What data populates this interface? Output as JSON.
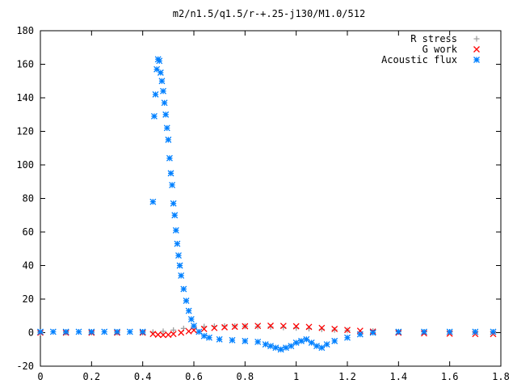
{
  "chart_data": {
    "type": "scatter",
    "title": "m2/n1.5/q1.5/r-+.25-j130/M1.0/512",
    "xlabel": "",
    "ylabel": "",
    "xlim": [
      0,
      1.8
    ],
    "ylim": [
      -20,
      180
    ],
    "xticks": [
      0,
      0.2,
      0.4,
      0.6,
      0.8,
      1,
      1.2,
      1.4,
      1.6,
      1.8
    ],
    "xtick_labels": [
      "0",
      "0.2",
      "0.4",
      "0.6",
      "0.8",
      "1",
      "1.2",
      "1.4",
      "1.6",
      "1.8"
    ],
    "yticks": [
      -20,
      0,
      20,
      40,
      60,
      80,
      100,
      120,
      140,
      160,
      180
    ],
    "ytick_labels": [
      "-20",
      "0",
      "20",
      "40",
      "60",
      "80",
      "100",
      "120",
      "140",
      "160",
      "180"
    ],
    "grid": false,
    "legend_position": "top-right",
    "series": [
      {
        "name": "R stress",
        "marker": "plus",
        "color": "#a0a0a0",
        "x": [
          0.0,
          0.1,
          0.2,
          0.3,
          0.4,
          0.44,
          0.48,
          0.52,
          0.56,
          0.6,
          0.64,
          0.68,
          0.72,
          0.76,
          0.8,
          0.85,
          0.9,
          0.95,
          1.0,
          1.05,
          1.1,
          1.15,
          1.2,
          1.3,
          1.4,
          1.5,
          1.6,
          1.7,
          1.77
        ],
        "y": [
          0,
          0,
          0,
          0,
          0,
          0.3,
          0.8,
          1.5,
          2.5,
          3.2,
          3.6,
          3.8,
          3.9,
          3.9,
          3.8,
          3.6,
          3.4,
          3.1,
          2.8,
          2.4,
          2.0,
          1.6,
          1.3,
          0.9,
          0.6,
          0.4,
          0.3,
          0.2,
          0.2
        ]
      },
      {
        "name": "G work",
        "marker": "cross",
        "color": "#ff0000",
        "x": [
          0.0,
          0.1,
          0.2,
          0.3,
          0.4,
          0.44,
          0.46,
          0.48,
          0.5,
          0.52,
          0.55,
          0.58,
          0.6,
          0.64,
          0.68,
          0.72,
          0.76,
          0.8,
          0.85,
          0.9,
          0.95,
          1.0,
          1.05,
          1.1,
          1.15,
          1.2,
          1.25,
          1.3,
          1.4,
          1.5,
          1.6,
          1.7,
          1.77
        ],
        "y": [
          0,
          0,
          0,
          0,
          0,
          -0.8,
          -1.2,
          -1.4,
          -1.3,
          -0.8,
          0.0,
          0.8,
          1.4,
          2.2,
          2.8,
          3.2,
          3.5,
          3.8,
          4.0,
          4.1,
          4.0,
          3.8,
          3.4,
          2.8,
          2.2,
          1.6,
          1.1,
          0.6,
          0.0,
          -0.4,
          -0.6,
          -0.8,
          -0.8
        ]
      },
      {
        "name": "Acoustic flux",
        "marker": "star",
        "color": "#0080ff",
        "x": [
          0.0,
          0.05,
          0.1,
          0.15,
          0.2,
          0.25,
          0.3,
          0.35,
          0.4,
          0.44,
          0.445,
          0.45,
          0.455,
          0.46,
          0.465,
          0.47,
          0.475,
          0.48,
          0.485,
          0.49,
          0.495,
          0.5,
          0.505,
          0.51,
          0.515,
          0.52,
          0.525,
          0.53,
          0.535,
          0.54,
          0.545,
          0.55,
          0.56,
          0.57,
          0.58,
          0.59,
          0.6,
          0.62,
          0.64,
          0.66,
          0.7,
          0.75,
          0.8,
          0.85,
          0.88,
          0.9,
          0.92,
          0.94,
          0.96,
          0.98,
          1.0,
          1.02,
          1.04,
          1.06,
          1.08,
          1.1,
          1.12,
          1.15,
          1.2,
          1.25,
          1.3,
          1.4,
          1.5,
          1.6,
          1.7,
          1.77
        ],
        "y": [
          0.5,
          0.5,
          0.5,
          0.5,
          0.5,
          0.5,
          0.5,
          0.5,
          0.5,
          78,
          129,
          142,
          157,
          163,
          162,
          155,
          150,
          144,
          137,
          130,
          122,
          115,
          104,
          95,
          88,
          77,
          70,
          61,
          53,
          46,
          40,
          34,
          26,
          19,
          13,
          8,
          4,
          0.5,
          -2,
          -3,
          -4,
          -4.5,
          -5,
          -5.5,
          -7,
          -8,
          -9,
          -10,
          -9,
          -8,
          -6,
          -5,
          -4,
          -6,
          -8,
          -9,
          -7,
          -5,
          -3,
          -1,
          0,
          0.5,
          0.5,
          0.5,
          0.5,
          0.5
        ]
      }
    ]
  }
}
